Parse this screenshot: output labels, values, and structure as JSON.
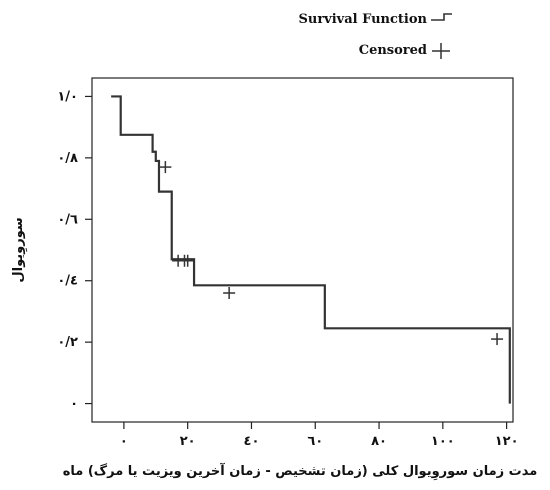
{
  "chart_data": {
    "type": "line",
    "subtype": "kaplan-meier-step",
    "xlabel": "مدت زمان سوروِیوال کلی (زمان تشخیص - زمان آخرین ویزیت یا مرگ) ماه",
    "ylabel": "سوروِیوال",
    "xlim": [
      -10,
      122
    ],
    "ylim": [
      -0.06,
      1.06
    ],
    "xticks": [
      0,
      20,
      40,
      60,
      80,
      100,
      120
    ],
    "xtick_labels": [
      "٠",
      "٢٠",
      "٤٠",
      "٦٠",
      "٨٠",
      "١٠٠",
      "١٢٠"
    ],
    "yticks": [
      0,
      0.2,
      0.4,
      0.6,
      0.8,
      1.0
    ],
    "ytick_labels": [
      "٠",
      "٠/٢",
      "٠/٤",
      "٠/٦",
      "٠/٨",
      "١/٠"
    ],
    "grid": false,
    "legend_position": "top-right",
    "color": "#333333",
    "series": [
      {
        "name": "Survival Function",
        "type": "step",
        "points": [
          {
            "x": -4,
            "y": 1.0
          },
          {
            "x": -1,
            "y": 0.875
          },
          {
            "x": 9,
            "y": 0.82
          },
          {
            "x": 10,
            "y": 0.79
          },
          {
            "x": 11,
            "y": 0.69
          },
          {
            "x": 15,
            "y": 0.47
          },
          {
            "x": 22,
            "y": 0.385
          },
          {
            "x": 63,
            "y": 0.245
          },
          {
            "x": 121,
            "y": 0.0
          }
        ]
      },
      {
        "name": "Censored",
        "type": "marker",
        "points": [
          {
            "x": 13,
            "y": 0.77
          },
          {
            "x": 17,
            "y": 0.465
          },
          {
            "x": 19,
            "y": 0.465
          },
          {
            "x": 20,
            "y": 0.465
          },
          {
            "x": 33,
            "y": 0.36
          },
          {
            "x": 117,
            "y": 0.21
          }
        ]
      }
    ]
  }
}
